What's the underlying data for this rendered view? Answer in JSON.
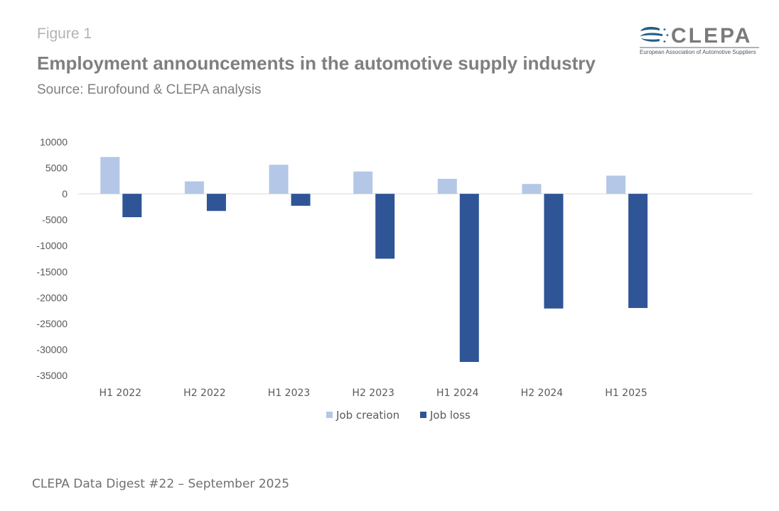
{
  "header": {
    "figure_label": "Figure 1",
    "title": "Employment announcements in the automotive supply industry",
    "subtitle": "Source: Eurofound & CLEPA analysis"
  },
  "logo": {
    "name": "CLEPA",
    "tagline": "European Association of Automotive Suppliers",
    "icon": "clepa-swoosh-icon"
  },
  "footer": {
    "text": "CLEPA Data Digest #22 – September 2025"
  },
  "colors": {
    "job_creation": "#b4c7e7",
    "job_loss": "#2f5597",
    "zero_line": "#d9d9d9"
  },
  "chart_data": {
    "type": "bar",
    "title": "Employment announcements in the automotive supply industry",
    "xlabel": "",
    "ylabel": "",
    "categories": [
      "H1 2022",
      "H2 2022",
      "H1 2023",
      "H2 2023",
      "H1 2024",
      "H2 2024",
      "H1 2025",
      ""
    ],
    "series": [
      {
        "name": "Job creation",
        "values": [
          7100,
          2400,
          5600,
          4300,
          2900,
          1900,
          3500,
          null
        ]
      },
      {
        "name": "Job loss",
        "values": [
          -4500,
          -3300,
          -2300,
          -12500,
          -32400,
          -22100,
          -22000,
          null
        ]
      }
    ],
    "ylim": [
      -35000,
      10000
    ],
    "yticks": [
      10000,
      5000,
      0,
      -5000,
      -10000,
      -15000,
      -20000,
      -25000,
      -30000,
      -35000
    ],
    "grid": false,
    "legend": "bottom-center"
  }
}
